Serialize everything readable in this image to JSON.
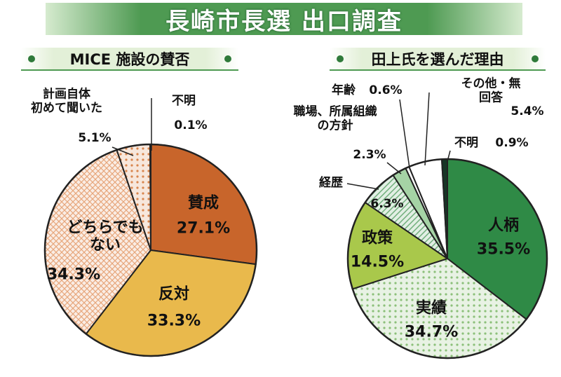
{
  "title": "長崎市長選 出口調査",
  "chart_data": [
    {
      "type": "pie",
      "title": "MICE 施設の賛否",
      "categories": [
        "賛成",
        "反対",
        "どちらでも\nない",
        "計画自体\n初めて聞いた",
        "不明"
      ],
      "values": [
        27.1,
        33.3,
        34.3,
        5.1,
        0.1
      ],
      "value_labels": [
        "27.1%",
        "33.3%",
        "34.3%",
        "5.1%",
        "0.1%"
      ],
      "colors": [
        "#c8652b",
        "#e9b94c",
        "#e7a77c",
        "#d9864e",
        "#3a2418"
      ],
      "patterns": [
        "solid",
        "solid",
        "crosshatch",
        "dots",
        "solid"
      ]
    },
    {
      "type": "pie",
      "title": "田上氏を選んだ理由",
      "categories": [
        "人柄",
        "実績",
        "政策",
        "経歴",
        "職場、所属組織\nの方針",
        "年齢",
        "その他・無回答",
        "不明"
      ],
      "values": [
        35.5,
        34.7,
        14.5,
        6.3,
        2.3,
        0.6,
        5.4,
        0.9
      ],
      "value_labels": [
        "35.5%",
        "34.7%",
        "14.5%",
        "6.3%",
        "2.3%",
        "0.6%",
        "5.4%",
        "0.9%"
      ],
      "colors": [
        "#2f8a46",
        "#8cc07a",
        "#a9c84b",
        "#6fae7a",
        "#a5d3a5",
        "#ffffff",
        "#ffffff",
        "#163626"
      ],
      "patterns": [
        "solid",
        "dots",
        "solid",
        "hatch",
        "solid",
        "solid",
        "solid",
        "solid"
      ]
    }
  ]
}
